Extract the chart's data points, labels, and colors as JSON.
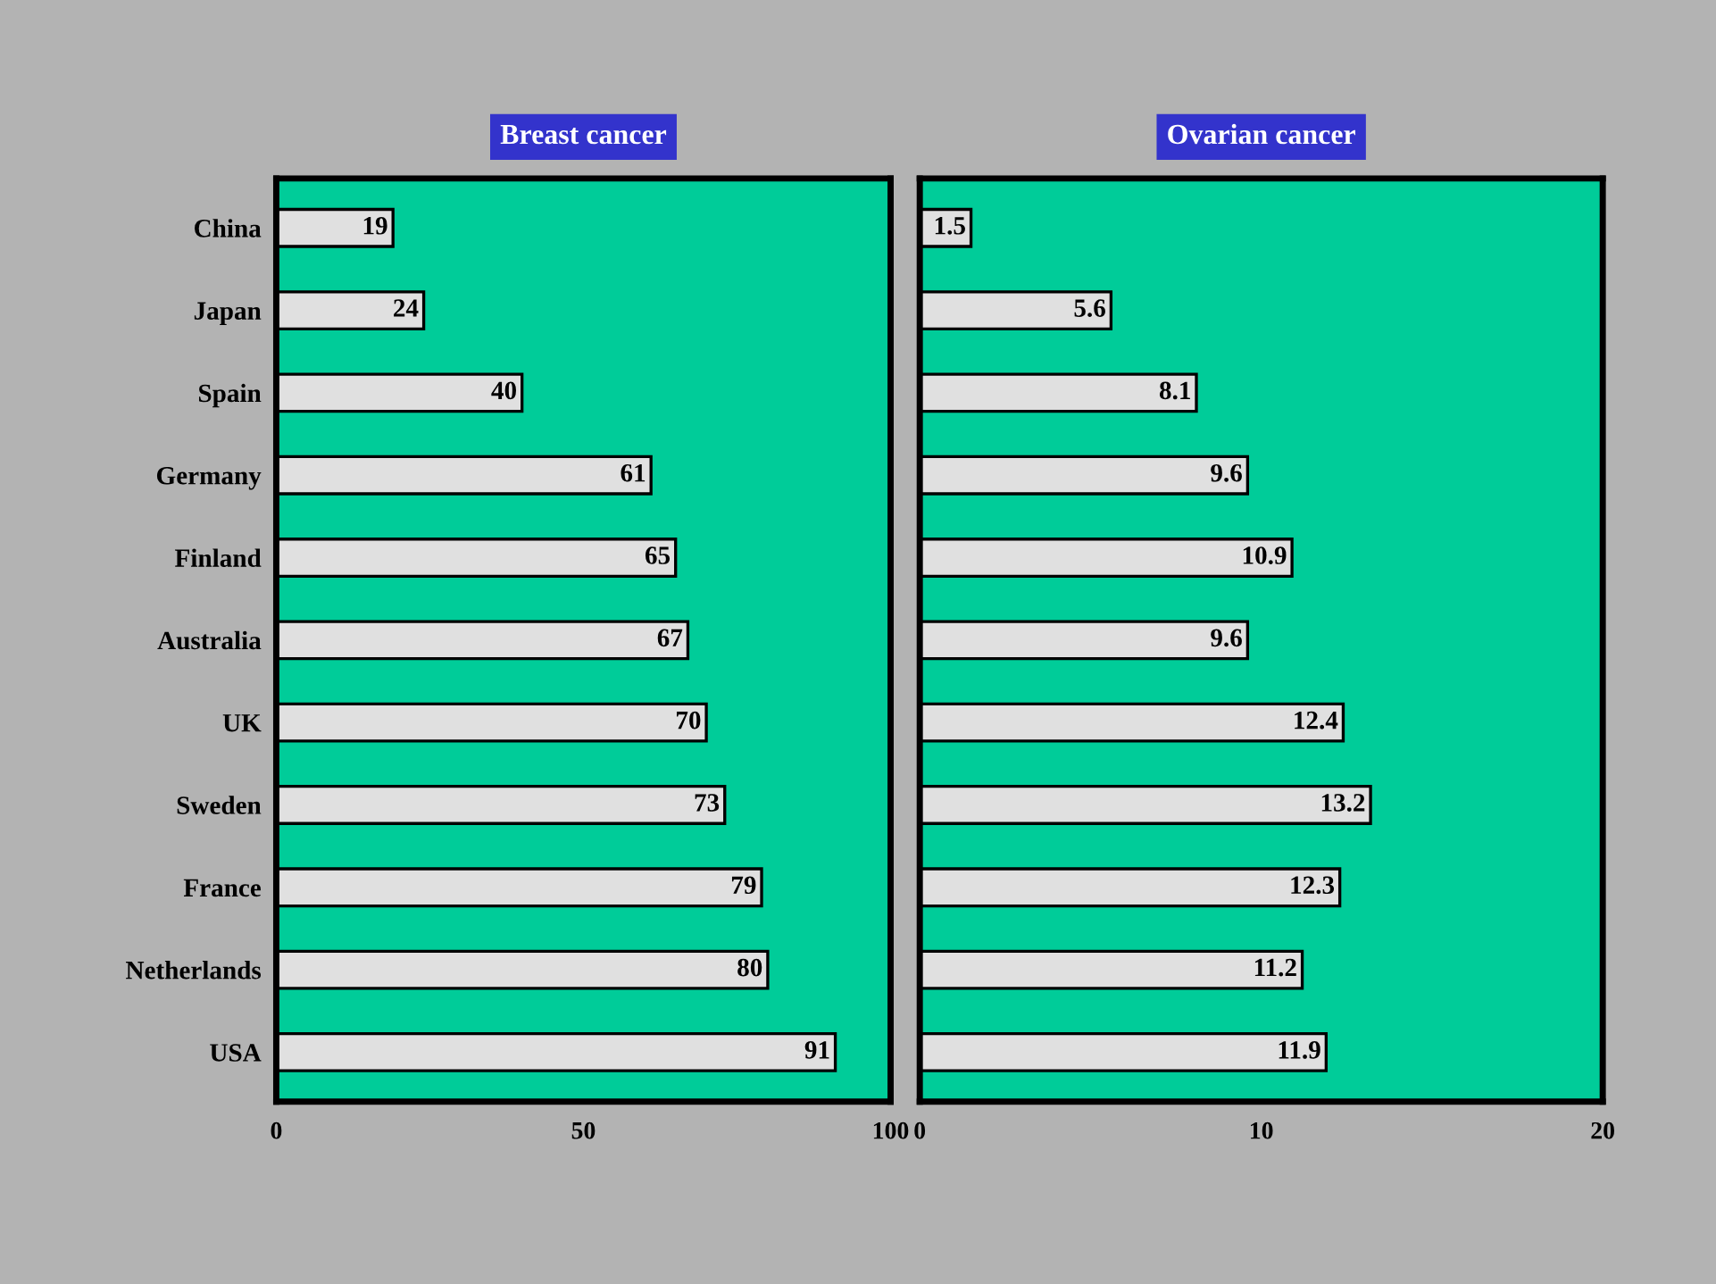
{
  "chart_data": [
    {
      "type": "bar",
      "orientation": "horizontal",
      "title": "Breast cancer",
      "categories": [
        "China",
        "Japan",
        "Spain",
        "Germany",
        "Finland",
        "Australia",
        "UK",
        "Sweden",
        "France",
        "Netherlands",
        "USA"
      ],
      "values": [
        19,
        24,
        40,
        61,
        65,
        67,
        70,
        73,
        79,
        80,
        91
      ],
      "color": "#e0e0e0",
      "xlim": [
        0,
        100
      ],
      "xticks": [
        0,
        50,
        100
      ],
      "data_labels": true,
      "grid": false,
      "legend": false
    },
    {
      "type": "bar",
      "orientation": "horizontal",
      "title": "Ovarian cancer",
      "categories": [
        null,
        null,
        null,
        null,
        null,
        null,
        null,
        null,
        null,
        null,
        null
      ],
      "values": [
        1.5,
        5.6,
        8.1,
        9.6,
        10.9,
        9.6,
        12.4,
        13.2,
        12.3,
        11.2,
        11.9
      ],
      "color": "#e0e0e0",
      "xlim": [
        0,
        20
      ],
      "xticks": [
        0,
        10,
        20
      ],
      "data_labels": true,
      "tick_labels": "x",
      "grid": false,
      "legend": false
    }
  ]
}
